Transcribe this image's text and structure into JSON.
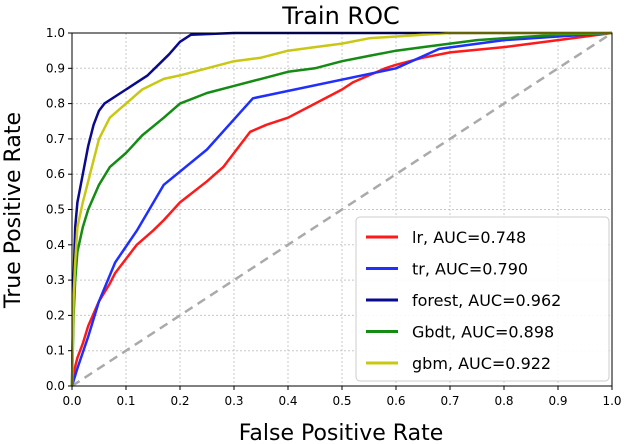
{
  "chart_data": {
    "type": "line",
    "title": "Train ROC",
    "xlabel": "False Positive Rate",
    "ylabel": "True Positive Rate",
    "xlim": [
      0.0,
      1.0
    ],
    "ylim": [
      0.0,
      1.0
    ],
    "xticks": [
      "0.0",
      "0.1",
      "0.2",
      "0.3",
      "0.4",
      "0.5",
      "0.6",
      "0.7",
      "0.8",
      "0.9",
      "1.0"
    ],
    "yticks": [
      "0.0",
      "0.1",
      "0.2",
      "0.3",
      "0.4",
      "0.5",
      "0.6",
      "0.7",
      "0.8",
      "0.9",
      "1.0"
    ],
    "grid": true,
    "legend_position": "lower-right",
    "diagonal": {
      "color": "#aaaaaa",
      "style": "dashed"
    },
    "series": [
      {
        "name": "lr, AUC=0.748",
        "color": "#ff1a1a",
        "x": [
          0,
          0.005,
          0.01,
          0.02,
          0.03,
          0.05,
          0.07,
          0.08,
          0.1,
          0.12,
          0.15,
          0.17,
          0.2,
          0.25,
          0.28,
          0.3,
          0.33,
          0.36,
          0.4,
          0.45,
          0.5,
          0.52,
          0.55,
          0.58,
          0.6,
          0.65,
          0.7,
          0.8,
          0.9,
          1.0
        ],
        "y": [
          0,
          0.05,
          0.08,
          0.12,
          0.17,
          0.24,
          0.29,
          0.32,
          0.36,
          0.4,
          0.44,
          0.47,
          0.52,
          0.58,
          0.62,
          0.66,
          0.72,
          0.74,
          0.76,
          0.8,
          0.84,
          0.86,
          0.88,
          0.9,
          0.91,
          0.93,
          0.945,
          0.96,
          0.98,
          1.0
        ]
      },
      {
        "name": "tr, AUC=0.790",
        "color": "#1f2fff",
        "x": [
          0,
          0.01,
          0.03,
          0.05,
          0.08,
          0.12,
          0.17,
          0.25,
          0.335,
          0.6,
          0.68,
          0.8,
          0.9,
          1.0
        ],
        "y": [
          0,
          0.05,
          0.14,
          0.24,
          0.35,
          0.44,
          0.57,
          0.67,
          0.815,
          0.9,
          0.955,
          0.98,
          0.99,
          1.0
        ]
      },
      {
        "name": "forest, AUC=0.962",
        "color": "#0a0a8c",
        "x": [
          0,
          0.003,
          0.006,
          0.01,
          0.015,
          0.02,
          0.03,
          0.04,
          0.05,
          0.06,
          0.08,
          0.1,
          0.12,
          0.14,
          0.16,
          0.18,
          0.2,
          0.22,
          0.3,
          0.4,
          0.5,
          0.6,
          0.7,
          0.8,
          0.9,
          1.0
        ],
        "y": [
          0,
          0.3,
          0.45,
          0.52,
          0.56,
          0.6,
          0.68,
          0.74,
          0.78,
          0.8,
          0.82,
          0.84,
          0.86,
          0.88,
          0.91,
          0.94,
          0.975,
          0.995,
          1.0,
          1.0,
          1.0,
          1.0,
          1.0,
          1.0,
          1.0,
          1.0
        ]
      },
      {
        "name": "Gbdt, AUC=0.898",
        "color": "#148c14",
        "x": [
          0,
          0.003,
          0.006,
          0.01,
          0.02,
          0.03,
          0.05,
          0.07,
          0.1,
          0.13,
          0.17,
          0.2,
          0.25,
          0.3,
          0.35,
          0.4,
          0.45,
          0.5,
          0.55,
          0.6,
          0.65,
          0.7,
          0.75,
          0.8,
          0.85,
          0.9,
          1.0
        ],
        "y": [
          0,
          0.2,
          0.3,
          0.38,
          0.45,
          0.5,
          0.57,
          0.62,
          0.66,
          0.71,
          0.76,
          0.8,
          0.83,
          0.85,
          0.87,
          0.89,
          0.9,
          0.92,
          0.935,
          0.95,
          0.96,
          0.97,
          0.98,
          0.985,
          0.99,
          0.995,
          1.0
        ]
      },
      {
        "name": "gbm, AUC=0.922",
        "color": "#c8c814",
        "x": [
          0,
          0.003,
          0.006,
          0.01,
          0.02,
          0.03,
          0.04,
          0.05,
          0.07,
          0.1,
          0.13,
          0.17,
          0.2,
          0.25,
          0.3,
          0.35,
          0.4,
          0.45,
          0.5,
          0.55,
          0.6,
          0.65,
          0.7,
          0.8,
          0.9,
          1.0
        ],
        "y": [
          0,
          0.25,
          0.35,
          0.45,
          0.52,
          0.58,
          0.64,
          0.7,
          0.76,
          0.8,
          0.84,
          0.87,
          0.88,
          0.9,
          0.92,
          0.93,
          0.95,
          0.96,
          0.97,
          0.985,
          0.99,
          0.995,
          1.0,
          1.0,
          1.0,
          1.0
        ]
      }
    ]
  }
}
